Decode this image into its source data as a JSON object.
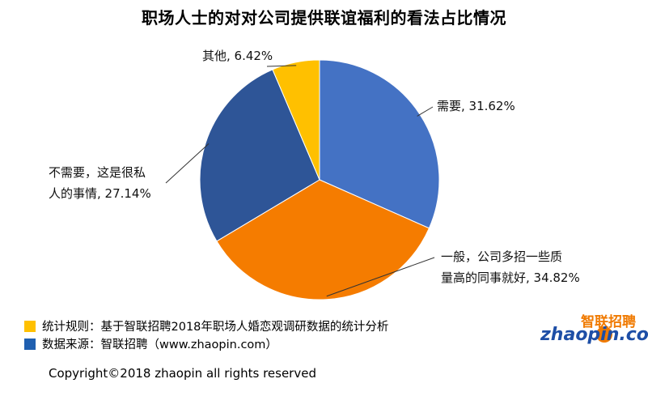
{
  "title": "职场人士的对对公司提供联谊福利的看法占比情况",
  "chart_data": {
    "type": "pie",
    "slices": [
      {
        "label_lines": [
          "需要, 31.62%"
        ],
        "value": 31.62,
        "color": "#4472c4"
      },
      {
        "label_lines": [
          "一般，公司多招一些质",
          "量高的同事就好, 34.82%"
        ],
        "value": 34.82,
        "color": "#f57c00"
      },
      {
        "label_lines": [
          "不需要，这是很私",
          "人的事情, 27.14%"
        ],
        "value": 27.14,
        "color": "#2e5597"
      },
      {
        "label_lines": [
          "其他, 6.42%"
        ],
        "value": 6.42,
        "color": "#ffc000"
      }
    ]
  },
  "footer": {
    "rule": {
      "text": "统计规则：基于智联招聘2018年职场人婚恋观调研数据的统计分析",
      "color": "#ffc000"
    },
    "source": {
      "text": "数据来源：智联招聘（www.zhaopin.com）",
      "color": "#1f5fb0"
    }
  },
  "copyright": "Copyright©2018 zhaopin all rights reserved",
  "logo": {
    "zh": "智联招聘",
    "en": "zhaopin.com"
  }
}
